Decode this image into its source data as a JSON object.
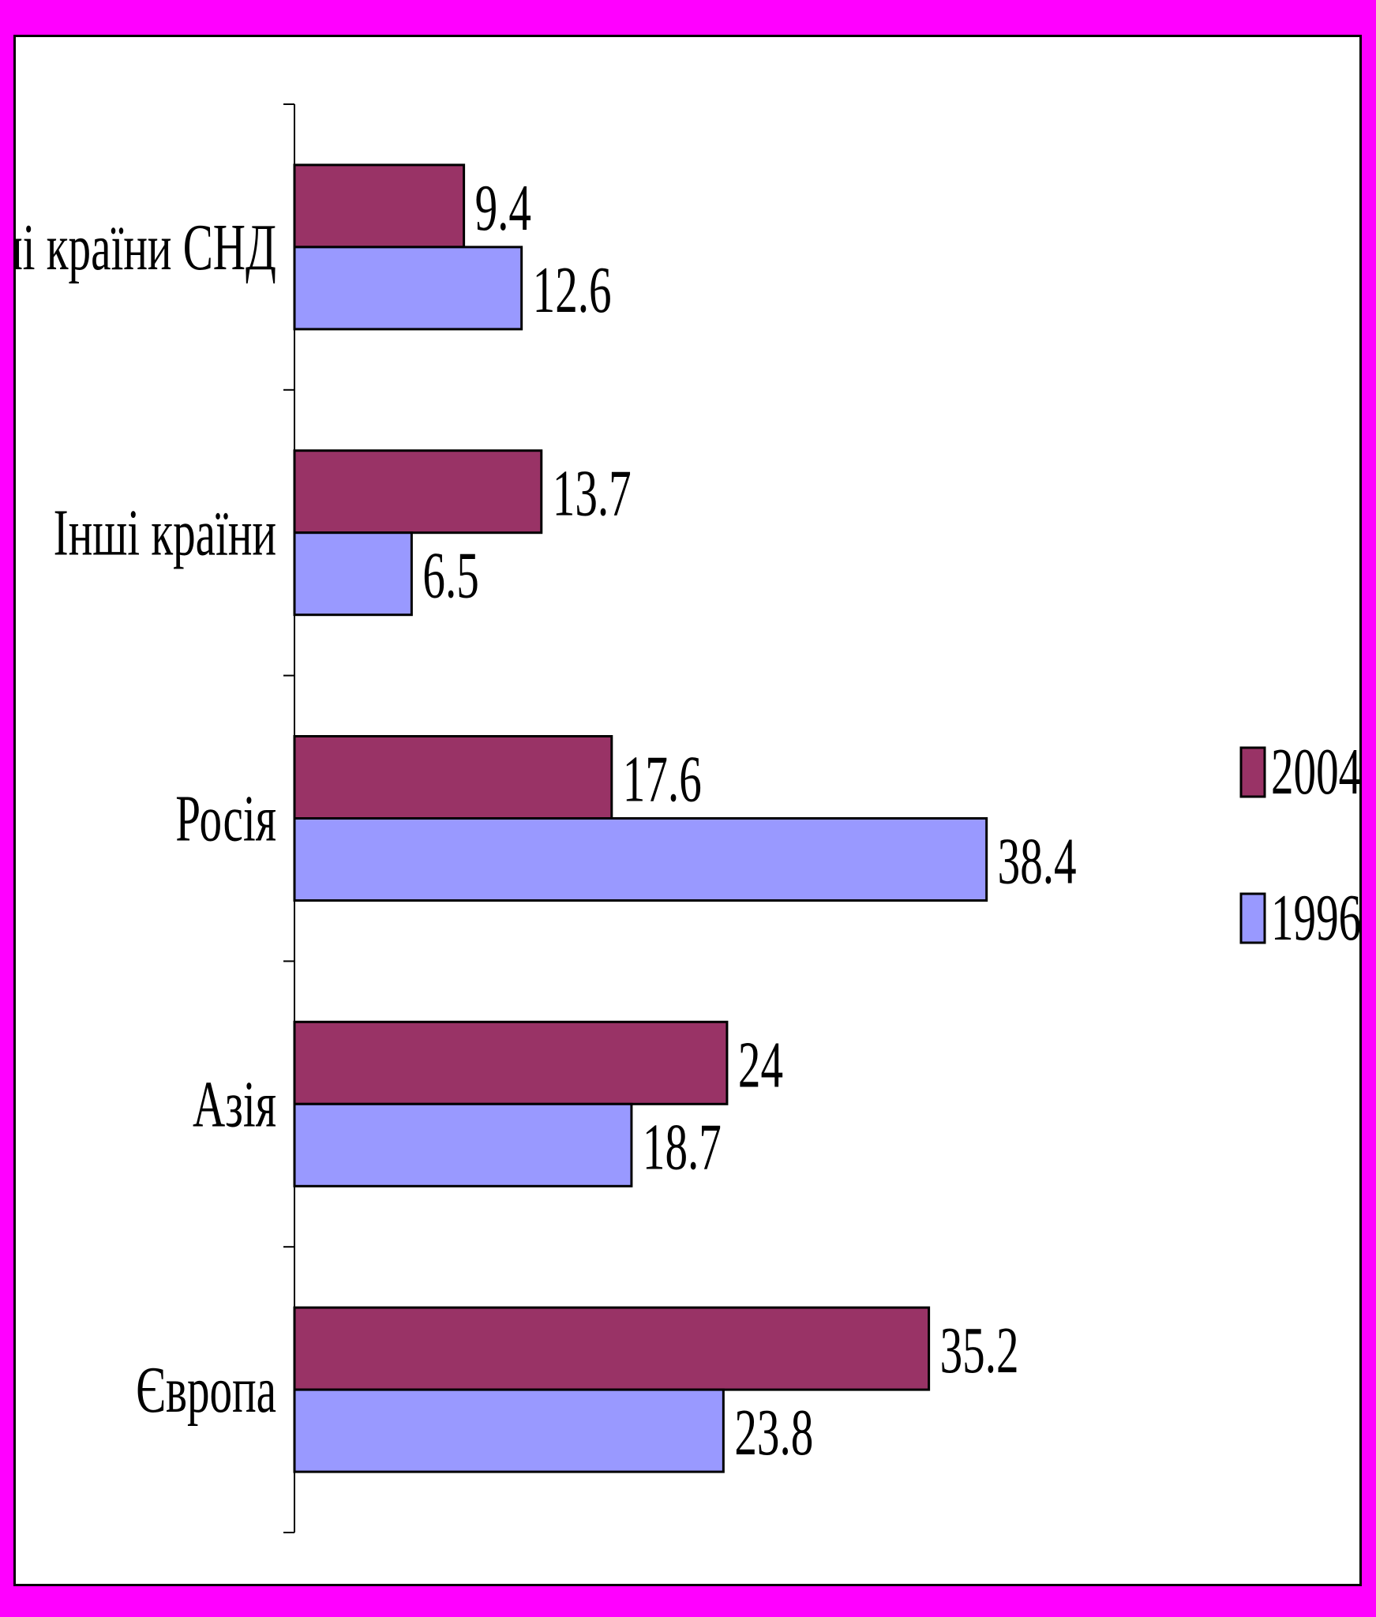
{
  "chart_data": {
    "type": "bar",
    "orientation": "horizontal",
    "categories": [
      "Інші країни СНД",
      "Інші країни",
      "Росія",
      "Азія",
      "Європа"
    ],
    "series": [
      {
        "name": "2004",
        "color": "#993366",
        "values": [
          9.4,
          13.7,
          17.6,
          24,
          35.2
        ]
      },
      {
        "name": "1996",
        "color": "#9999ff",
        "values": [
          12.6,
          6.5,
          38.4,
          18.7,
          23.8
        ]
      }
    ],
    "value_labels": {
      "2004": [
        "9.4",
        "13.7",
        "17.6",
        "24",
        "35.2"
      ],
      "1996": [
        "12.6",
        "6.5",
        "38.4",
        "18.7",
        "23.8"
      ]
    },
    "legend": {
      "position": "right",
      "order": [
        "2004",
        "1996"
      ]
    },
    "xlim": [
      0,
      40
    ],
    "grid": false,
    "title": "",
    "xlabel": "",
    "ylabel": ""
  }
}
